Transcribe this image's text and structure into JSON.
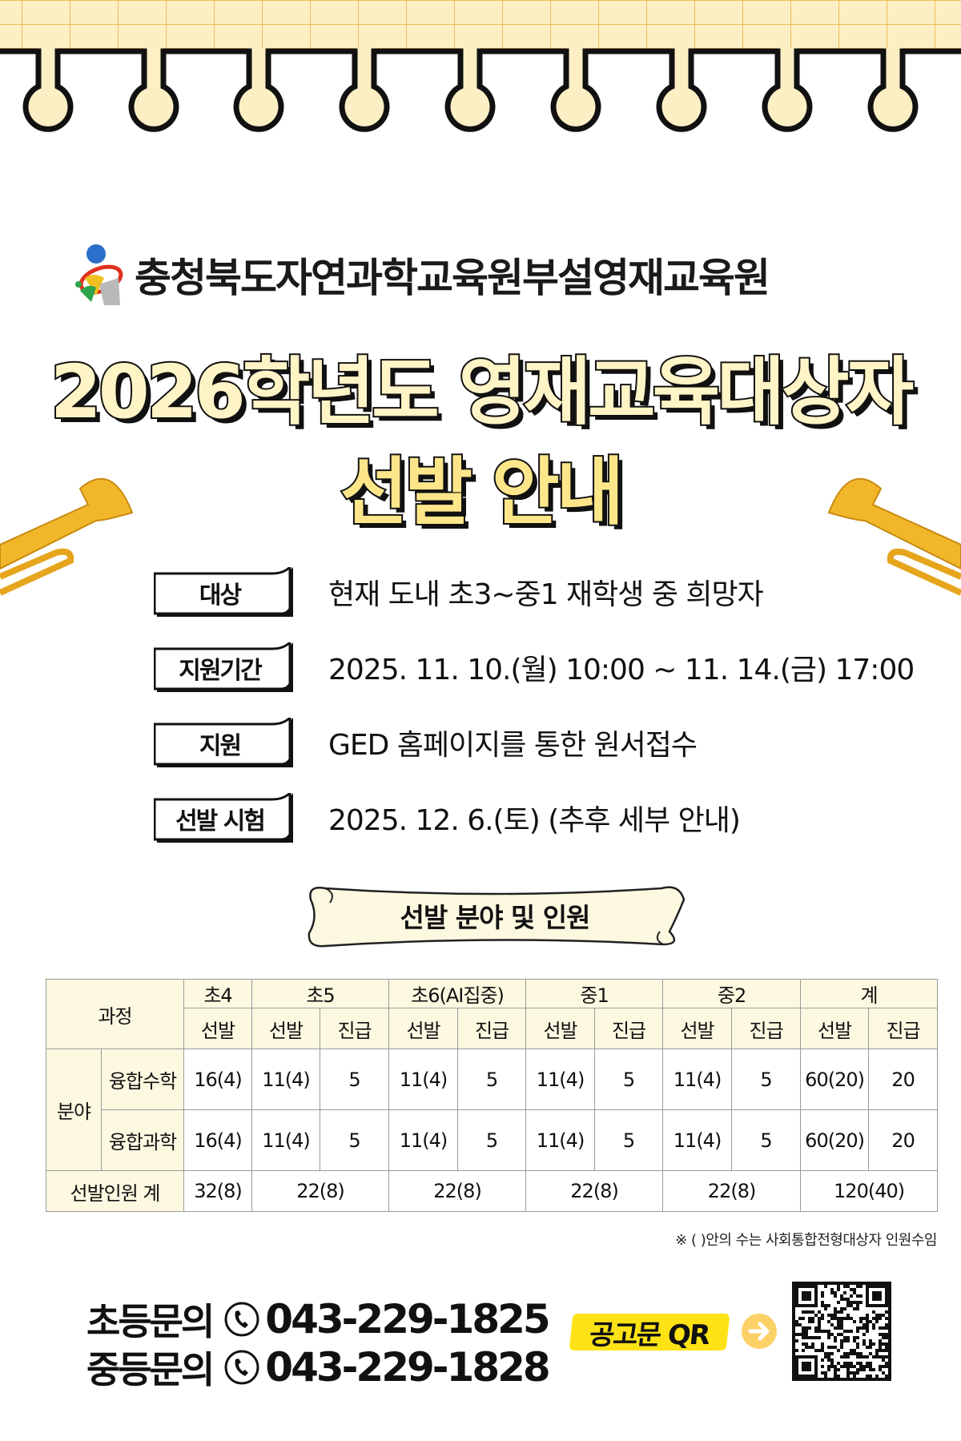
{
  "org_name": "충청북도자연과학교육원부설영재교육원",
  "title_line1": "2026학년도 영재교육대상자",
  "title_line2": "선발 안내",
  "info": [
    {
      "label": "대상",
      "value": "현재 도내 초3~중1 재학생 중 희망자"
    },
    {
      "label": "지원기간",
      "value": "2025. 11. 10.(월) 10:00 ~ 11. 14.(금) 17:00"
    },
    {
      "label": "지원",
      "value": "GED 홈페이지를 통한 원서접수"
    },
    {
      "label": "선발 시험",
      "value": "2025. 12. 6.(토) (추후 세부 안내)"
    }
  ],
  "section_title": "선발 분야 및 인원",
  "table": {
    "course_label": "과정",
    "grades": [
      {
        "name": "초4",
        "cols": [
          "선발"
        ]
      },
      {
        "name": "초5",
        "cols": [
          "선발",
          "진급"
        ]
      },
      {
        "name": "초6(AI집중)",
        "cols": [
          "선발",
          "진급"
        ]
      },
      {
        "name": "중1",
        "cols": [
          "선발",
          "진급"
        ]
      },
      {
        "name": "중2",
        "cols": [
          "선발",
          "진급"
        ]
      },
      {
        "name": "계",
        "cols": [
          "선발",
          "진급"
        ]
      }
    ],
    "field_label": "분야",
    "rows": [
      {
        "name": "융합수학",
        "values": [
          "16(4)",
          "11(4)",
          "5",
          "11(4)",
          "5",
          "11(4)",
          "5",
          "11(4)",
          "5",
          "60(20)",
          "20"
        ]
      },
      {
        "name": "융합과학",
        "values": [
          "16(4)",
          "11(4)",
          "5",
          "11(4)",
          "5",
          "11(4)",
          "5",
          "11(4)",
          "5",
          "60(20)",
          "20"
        ]
      }
    ],
    "total_label": "선발인원 계",
    "totals": [
      "32(8)",
      "22(8)",
      "22(8)",
      "22(8)",
      "22(8)",
      "120(40)"
    ]
  },
  "footnote": "※ ( )안의 수는 사회통합전형대상자 인원수임",
  "contacts": [
    {
      "label": "초등문의",
      "phone": "043-229-1825"
    },
    {
      "label": "중등문의",
      "phone": "043-229-1828"
    }
  ],
  "qr_label": "공고문 QR",
  "colors": {
    "grid_bg": "#fdefc4",
    "grid_line": "#f3b95a",
    "title_fill": "#fff4c6",
    "header_cell": "#fdf9e1",
    "qr_badge": "#fde216",
    "arrow": "#fcd167",
    "trumpet": "#f2b62a"
  }
}
